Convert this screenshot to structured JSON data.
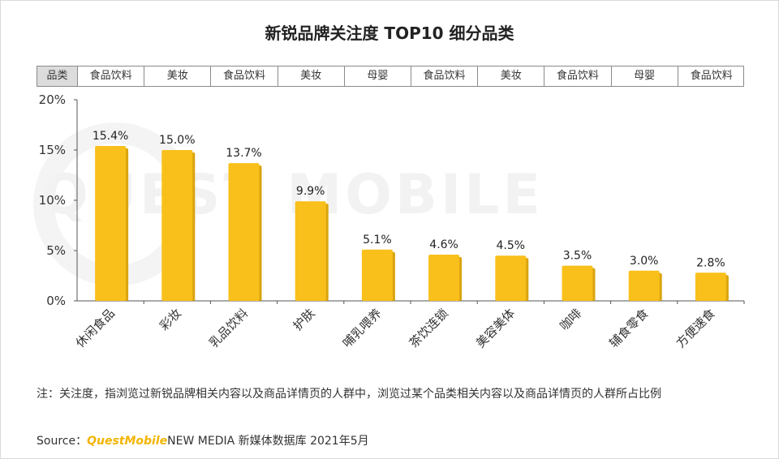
{
  "title": "新锐品牌关注度 TOP10 细分品类",
  "watermark": "QUEST MOBILE",
  "category_header": "品类",
  "categories_row": [
    "食品饮料",
    "美妆",
    "食品饮料",
    "美妆",
    "母婴",
    "食品饮料",
    "美妆",
    "食品饮料",
    "母婴",
    "食品饮料"
  ],
  "note": "注：关注度，指浏览过新锐品牌相关内容以及商品详情页的人群中，浏览过某个品类相关内容以及商品详情页的人群所占比例",
  "source": {
    "prefix": "Source：",
    "brand": "QuestMobile",
    "suffix": "NEW MEDIA 新媒体数据库 2021年5月"
  },
  "colors": {
    "bar": "#f9c01b",
    "bar_shadow": "#d9a40e",
    "axis": "#555555"
  },
  "chart_data": {
    "type": "bar",
    "categories": [
      "休闲食品",
      "彩妆",
      "乳品饮料",
      "护肤",
      "哺乳喂养",
      "茶饮连锁",
      "美容美体",
      "咖啡",
      "辅食零食",
      "方便速食"
    ],
    "values": [
      15.4,
      15.0,
      13.7,
      9.9,
      5.1,
      4.6,
      4.5,
      3.5,
      3.0,
      2.8
    ],
    "value_labels": [
      "15.4%",
      "15.0%",
      "13.7%",
      "9.9%",
      "5.1%",
      "4.6%",
      "4.5%",
      "3.5%",
      "3.0%",
      "2.8%"
    ],
    "ylim": [
      0,
      20
    ],
    "yticks": [
      0,
      5,
      10,
      15,
      20
    ],
    "ytick_labels": [
      "0%",
      "5%",
      "10%",
      "15%",
      "20%"
    ],
    "xlabel": "",
    "ylabel": "",
    "grid": false,
    "legend": false
  }
}
